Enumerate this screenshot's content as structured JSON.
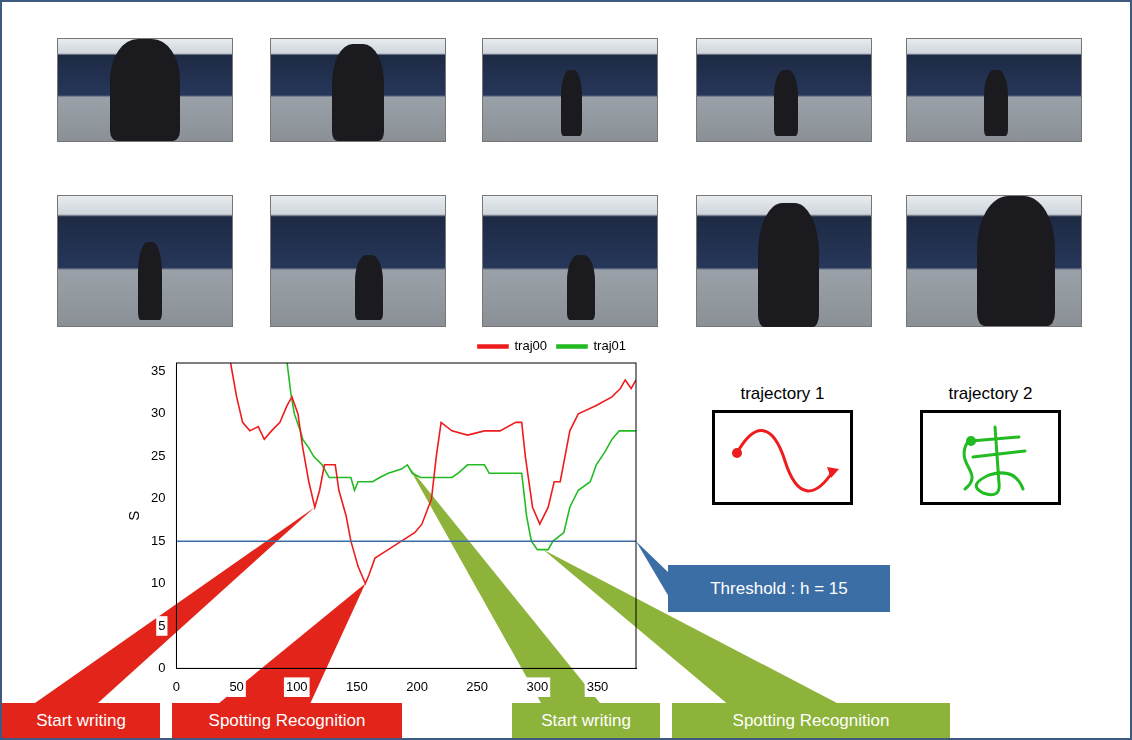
{
  "chart_data": {
    "type": "line",
    "y_label": "S",
    "xlim": [
      0,
      382
    ],
    "xticks": [
      0,
      50,
      100,
      150,
      200,
      250,
      300,
      350
    ],
    "ylim": [
      0,
      36
    ],
    "yticks": [
      0,
      5,
      10,
      15,
      20,
      25,
      30,
      35
    ],
    "grid": false,
    "legend": "top-right",
    "series": [
      {
        "name": "traj00",
        "color": "#ee1c1c",
        "x": [
          45,
          50,
          55,
          61,
          68,
          73,
          79,
          86,
          92,
          96,
          101,
          105,
          110,
          115,
          119,
          123,
          132,
          135,
          141,
          145,
          151,
          157,
          160,
          165,
          176,
          187,
          198,
          204,
          212,
          216,
          220,
          229,
          242,
          256,
          269,
          282,
          287,
          290,
          296,
          302,
          309,
          314,
          319,
          327,
          334,
          349,
          362,
          369,
          373,
          378,
          382
        ],
        "values": [
          36,
          32,
          29,
          28,
          28.5,
          27,
          28,
          29,
          31,
          32,
          30,
          26,
          22,
          19,
          21,
          24,
          24,
          21,
          18,
          15,
          12,
          10,
          11,
          13,
          14,
          15,
          16,
          17,
          20,
          25,
          29,
          28,
          27.5,
          28,
          28,
          29,
          29,
          25,
          19,
          17,
          19,
          22,
          22,
          28,
          30,
          31,
          32,
          33,
          34,
          33,
          34
        ]
      },
      {
        "name": "traj01",
        "color": "#22bb22",
        "x": [
          92,
          95,
          98,
          103,
          105,
          110,
          114,
          121,
          125,
          127,
          145,
          148,
          151,
          163,
          169,
          176,
          187,
          192,
          196,
          203,
          229,
          234,
          242,
          256,
          260,
          287,
          291,
          295,
          300,
          309,
          313,
          322,
          327,
          334,
          344,
          349,
          356,
          362,
          368,
          382
        ],
        "values": [
          36,
          32.5,
          30,
          28,
          27,
          26,
          25,
          24,
          23,
          22.5,
          22.5,
          21,
          22,
          22,
          22.5,
          23,
          23.5,
          24,
          23,
          22.5,
          22.5,
          23,
          24,
          24,
          23,
          23,
          18,
          15,
          14,
          14,
          15,
          16,
          19,
          21,
          22,
          24,
          25.5,
          27,
          28,
          28
        ]
      }
    ],
    "threshold": {
      "value": 15,
      "label": "Threshold : h = 15",
      "color": "#3b6ea5"
    },
    "annotations": [
      {
        "text": "Start writing",
        "x": 115,
        "y": 19,
        "color": "#e2241a"
      },
      {
        "text": "Spotting Recognition",
        "x": 157,
        "y": 10,
        "color": "#e2241a"
      },
      {
        "text": "Start writing",
        "x": 192,
        "y": 24,
        "color": "#8db33a"
      },
      {
        "text": "Spotting Recognition",
        "x": 305,
        "y": 14,
        "color": "#8db33a"
      }
    ],
    "insets": [
      {
        "title": "trajectory 1",
        "color": "#ee1c1c"
      },
      {
        "title": "trajectory 2",
        "color": "#22bb22"
      }
    ]
  }
}
